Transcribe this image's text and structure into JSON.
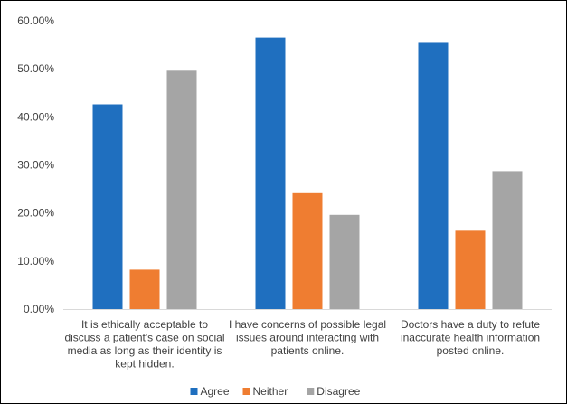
{
  "chart_data": {
    "type": "bar",
    "title": "",
    "xlabel": "",
    "ylabel": "",
    "ylim": [
      0,
      60
    ],
    "y_ticks": [
      "0.00%",
      "10.00%",
      "20.00%",
      "30.00%",
      "40.00%",
      "50.00%",
      "60.00%"
    ],
    "y_tick_values": [
      0,
      10,
      20,
      30,
      40,
      50,
      60
    ],
    "grid": false,
    "legend_position": "bottom",
    "categories": [
      [
        "It is ethically acceptable to",
        "discuss a patient's case on social",
        "media as long as their identity is",
        "kept hidden."
      ],
      [
        "I have concerns of possible legal",
        "issues around interacting with",
        "patients online."
      ],
      [
        "Doctors have a duty to refute",
        "inaccurate health information",
        "posted online."
      ]
    ],
    "series": [
      {
        "name": "Agree",
        "color": "#1f6fbf",
        "values": [
          42.6,
          56.5,
          55.4
        ]
      },
      {
        "name": "Neither",
        "color": "#ef7d31",
        "values": [
          8.2,
          24.3,
          16.3
        ]
      },
      {
        "name": "Disagree",
        "color": "#a5a5a5",
        "values": [
          49.6,
          19.6,
          28.7
        ]
      }
    ]
  }
}
